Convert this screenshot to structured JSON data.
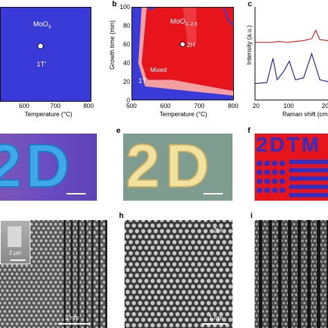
{
  "panels": {
    "a": {
      "label": "",
      "xlabel": "Temperature (°C)",
      "xticks": [
        "600",
        "700",
        "800"
      ],
      "phase_top": "MoO",
      "phase_top_sub": "3",
      "phase_bottom": "1T′",
      "fill_color": "#3a3ad8"
    },
    "b": {
      "label": "b",
      "xlabel": "Temperature (°C)",
      "ylabel": "Growth time (min)",
      "xticks": [
        "500",
        "600",
        "700",
        "800"
      ],
      "yticks": [
        "0",
        "20",
        "40",
        "60",
        "80",
        "100"
      ],
      "phase_moo2": "MoO",
      "phase_moo2_sub": "2–2.5",
      "phase_2h": "2H",
      "phase_mixed": "Mixed",
      "phase_1t": "1T′",
      "colors": {
        "blue": "#3a3ad8",
        "red": "#e8141c",
        "pink": "#f4a0a0"
      }
    },
    "c": {
      "label": "c",
      "xlabel": "Raman shift (cm",
      "ylabel": "Intensity (a.u.)",
      "xticks": [
        "20",
        "100",
        "20"
      ]
    },
    "e": {
      "label": "e"
    },
    "f": {
      "label": "f",
      "text": "2DTM"
    },
    "g": {
      "inset_scale": "2 μm",
      "scale": "2 nm"
    },
    "h": {
      "label": "h",
      "phase": "2H",
      "scale": "1 nm"
    },
    "i": {
      "label": "i"
    },
    "row2_text": "2D"
  },
  "chart_data": [
    {
      "type": "area",
      "title": "",
      "xlabel": "Temperature (°C)",
      "ylabel": "Growth time (min)",
      "xlim": [
        500,
        800
      ],
      "ylim": [
        0,
        100
      ],
      "regions": [
        {
          "name": "MoO2–2.5",
          "color": "#e8141c"
        },
        {
          "name": "Mixed",
          "color": "#f4a0a0"
        },
        {
          "name": "1T′",
          "color": "#3a3ad8"
        },
        {
          "name": "2H",
          "color": "#ffffff"
        }
      ],
      "points": [
        {
          "label": "2H",
          "x": 650,
          "y": 60
        }
      ],
      "boundary_red": [
        [
          545,
          100
        ],
        [
          530,
          40
        ],
        [
          545,
          22
        ],
        [
          620,
          22
        ],
        [
          800,
          10
        ],
        [
          800,
          100
        ]
      ],
      "boundary_mixed": [
        [
          530,
          100
        ],
        [
          520,
          40
        ],
        [
          540,
          15
        ],
        [
          800,
          5
        ],
        [
          800,
          10
        ],
        [
          620,
          22
        ],
        [
          545,
          22
        ],
        [
          530,
          40
        ],
        [
          545,
          100
        ]
      ],
      "boundary_top_notch": [
        [
          545,
          100
        ],
        [
          555,
          96
        ],
        [
          575,
          100
        ]
      ]
    },
    {
      "type": "line",
      "xlabel": "Raman shift (cm",
      "ylabel": "Intensity (a.u.)",
      "series": [
        {
          "color": "#d81c1c",
          "x": [
            20,
            60,
            80,
            100,
            120,
            140,
            160,
            170,
            180,
            200
          ],
          "y": [
            0.62,
            0.62,
            0.63,
            0.62,
            0.63,
            0.64,
            0.66,
            0.75,
            0.65,
            0.64
          ]
        },
        {
          "color": "#1c1ca8",
          "x": [
            20,
            50,
            65,
            75,
            90,
            105,
            120,
            140,
            160,
            180,
            200
          ],
          "y": [
            0.18,
            0.19,
            0.45,
            0.22,
            0.3,
            0.42,
            0.22,
            0.24,
            0.5,
            0.22,
            0.2
          ]
        }
      ]
    }
  ]
}
